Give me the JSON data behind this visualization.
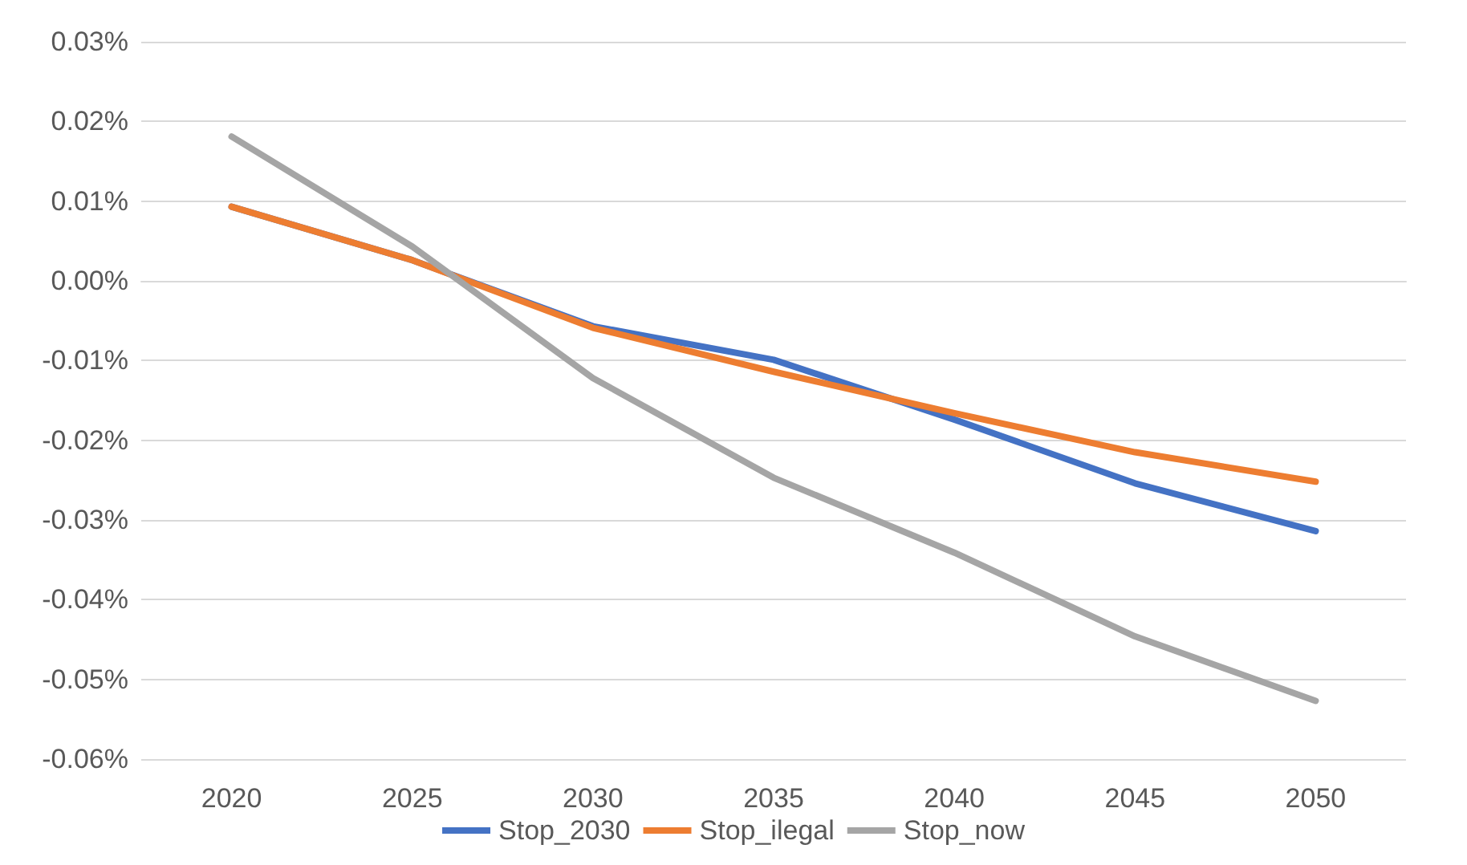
{
  "chart_data": {
    "type": "line",
    "categories": [
      "2020",
      "2025",
      "2030",
      "2035",
      "2040",
      "2045",
      "2050"
    ],
    "series": [
      {
        "name": "Stop_2030",
        "color": "#4472c4",
        "values": [
          0.0093,
          0.0026,
          -0.0057,
          -0.0099,
          -0.0174,
          -0.0254,
          -0.0314
        ]
      },
      {
        "name": "Stop_ilegal",
        "color": "#ed7d31",
        "values": [
          0.0093,
          0.0026,
          -0.0059,
          -0.0114,
          -0.0166,
          -0.0215,
          -0.0252
        ]
      },
      {
        "name": "Stop_now",
        "color": "#a5a5a5",
        "values": [
          0.0181,
          0.0043,
          -0.0122,
          -0.0247,
          -0.0341,
          -0.0446,
          -0.0527
        ]
      }
    ],
    "ylim": [
      -0.06,
      0.03
    ],
    "yticks": [
      {
        "value": -0.06,
        "label": "-0.06%"
      },
      {
        "value": -0.05,
        "label": "-0.05%"
      },
      {
        "value": -0.04,
        "label": "-0.04%"
      },
      {
        "value": -0.03,
        "label": "-0.03%"
      },
      {
        "value": -0.02,
        "label": "-0.02%"
      },
      {
        "value": -0.01,
        "label": "-0.01%"
      },
      {
        "value": 0,
        "label": "0.00%"
      },
      {
        "value": 0.01,
        "label": "0.01%"
      },
      {
        "value": 0.02,
        "label": "0.02%"
      },
      {
        "value": 0.03,
        "label": "0.03%"
      }
    ],
    "grid": "y",
    "legend": "bottom",
    "marker": "none",
    "line_style": "solid"
  }
}
